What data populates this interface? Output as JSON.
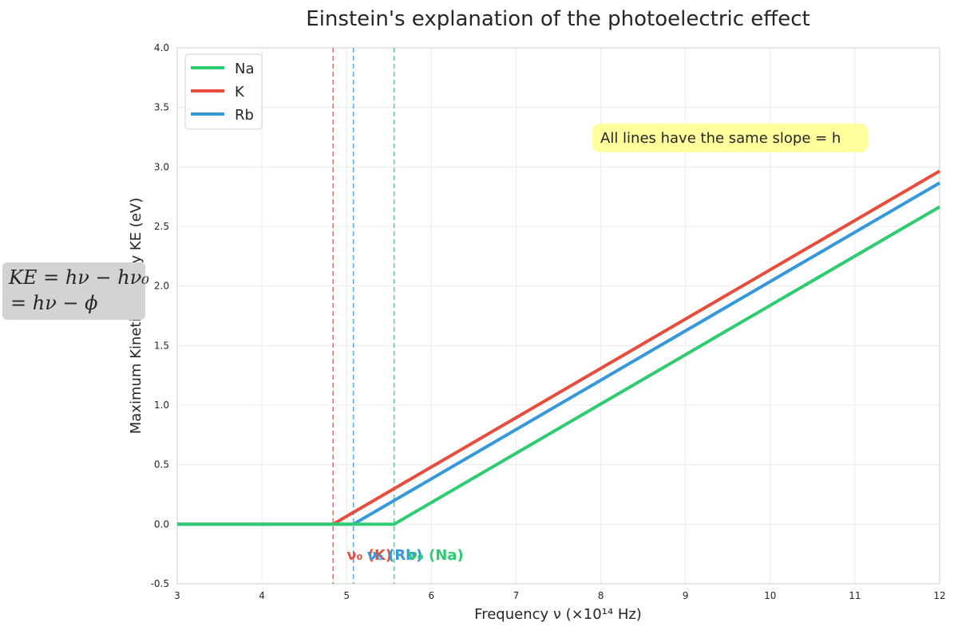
{
  "chart_data": {
    "type": "line",
    "title": "Einstein's explanation of the photoelectric effect",
    "xlabel": "Frequency ν (×10¹⁴ Hz)",
    "ylabel": "Maximum Kinetic Energy KE (eV)",
    "xlim": [
      3,
      12
    ],
    "ylim": [
      -0.5,
      4.0
    ],
    "xticks": [
      3,
      4,
      5,
      6,
      7,
      8,
      9,
      10,
      11,
      12
    ],
    "yticks": [
      -0.5,
      0.0,
      0.5,
      1.0,
      1.5,
      2.0,
      2.5,
      3.0,
      3.5,
      4.0
    ],
    "xtick_labels": [
      "3",
      "4",
      "5",
      "6",
      "7",
      "8",
      "9",
      "10",
      "11",
      "12"
    ],
    "ytick_labels": [
      "-0.5",
      "0.0",
      "0.5",
      "1.0",
      "1.5",
      "2.0",
      "2.5",
      "3.0",
      "3.5",
      "4.0"
    ],
    "grid": true,
    "legend_position": "top-left",
    "series": [
      {
        "name": "Na",
        "color": "#2ecc71",
        "threshold": 5.56,
        "x": [
          3,
          5.56,
          12
        ],
        "y": [
          0,
          0,
          2.665
        ]
      },
      {
        "name": "K",
        "color": "#e74c3c",
        "threshold": 4.84,
        "x": [
          3,
          4.84,
          12
        ],
        "y": [
          0,
          0,
          2.965
        ]
      },
      {
        "name": "Rb",
        "color": "#3498db",
        "threshold": 5.08,
        "x": [
          3,
          5.08,
          12
        ],
        "y": [
          0,
          0,
          2.866
        ]
      }
    ],
    "threshold_labels": [
      {
        "text": "ν₀ (K)",
        "color": "#e74c3c",
        "x": 5.0,
        "y": -0.26
      },
      {
        "text": "ν₀ (Rb)",
        "color": "#3498db",
        "x": 5.24,
        "y": -0.26
      },
      {
        "text": "ν₀ (Na)",
        "color": "#2ecc71",
        "x": 5.72,
        "y": -0.26
      }
    ],
    "annotation": {
      "text": "All lines have the same slope = h",
      "background": "#ffff99",
      "x": 8.0,
      "y": 3.23
    },
    "formula": {
      "line1": "KE = hν − hν₀",
      "line2": "= hν − ϕ",
      "background": "#d3d3d3"
    }
  }
}
